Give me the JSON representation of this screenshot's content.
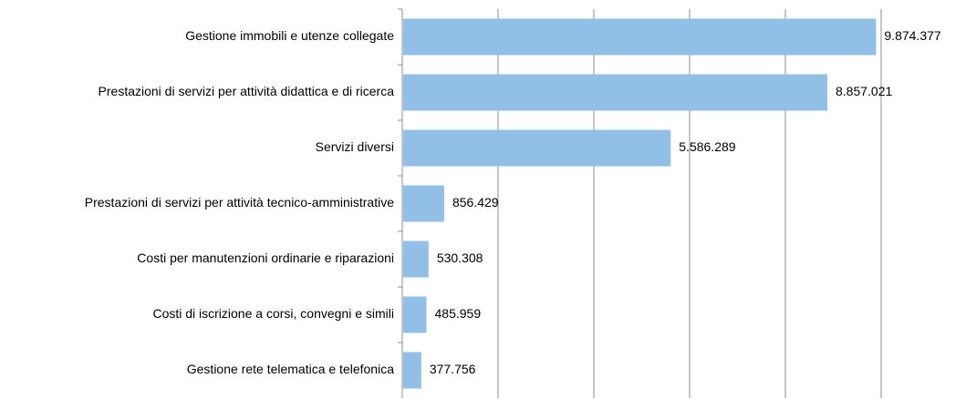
{
  "chart_data": {
    "type": "bar",
    "orientation": "horizontal",
    "categories": [
      "Gestione immobili e utenze collegate",
      "Prestazioni di servizi per attività didattica e di ricerca",
      "Servizi diversi",
      "Prestazioni di servizi per attività tecnico-amministrative",
      "Costi per manutenzioni ordinarie e riparazioni",
      "Costi di iscrizione a corsi, convegni e simili",
      "Gestione rete telematica e telefonica"
    ],
    "values": [
      9874377,
      8857021,
      5586289,
      856429,
      530308,
      485959,
      377756
    ],
    "value_labels": [
      "9.874.377",
      "8.857.021",
      "5.586.289",
      "856.429",
      "530.308",
      "485.959",
      "377.756"
    ],
    "color": "#92bfe6",
    "xlim": [
      0,
      10000000
    ],
    "xticks": [
      0,
      2000000,
      4000000,
      6000000,
      8000000,
      10000000
    ],
    "grid": true
  }
}
